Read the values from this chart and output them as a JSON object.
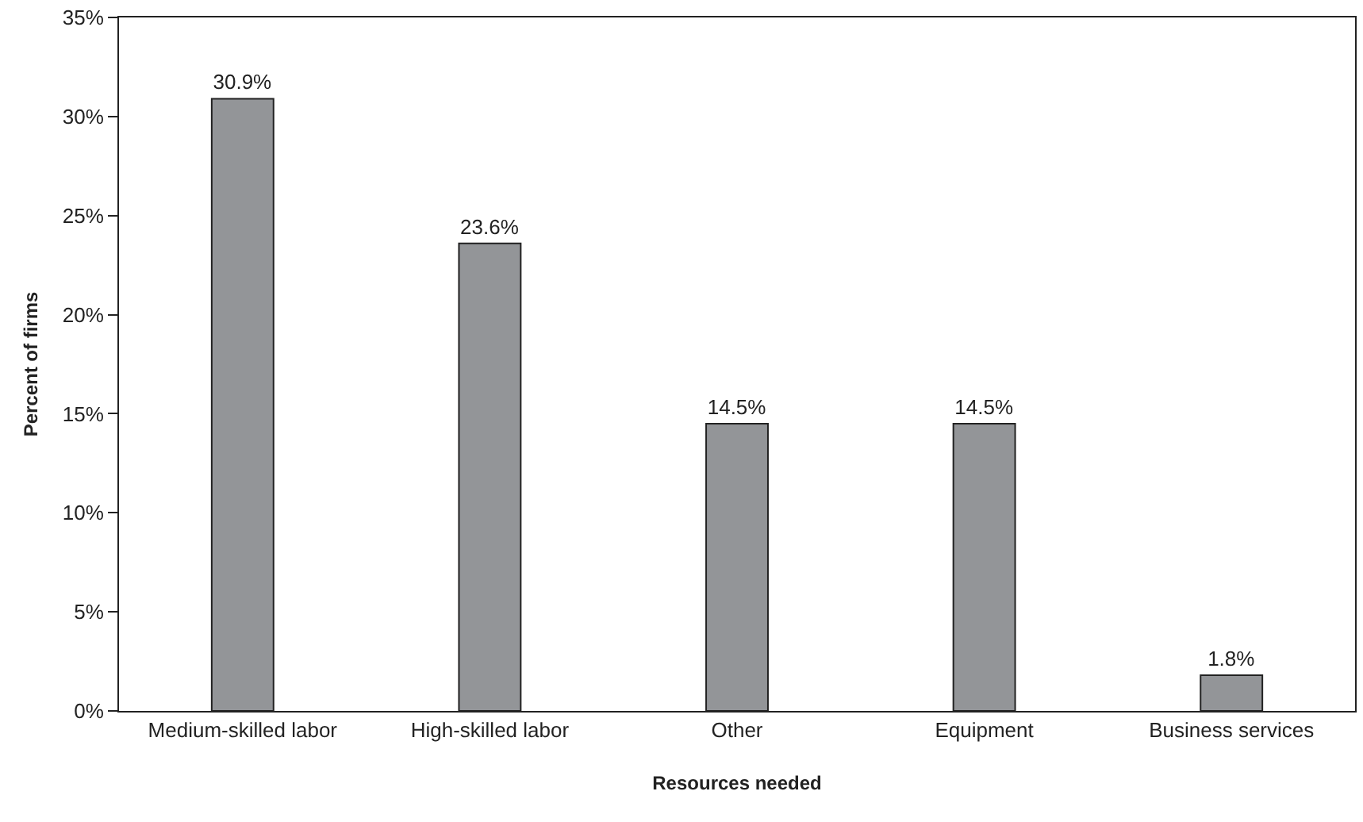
{
  "chart_data": {
    "type": "bar",
    "xlabel": "Resources needed",
    "ylabel": "Percent of firms",
    "categories": [
      "Medium-skilled labor",
      "High-skilled labor",
      "Other",
      "Equipment",
      "Business services"
    ],
    "values": [
      30.9,
      23.6,
      14.5,
      14.5,
      1.8
    ],
    "value_labels": [
      "30.9%",
      "23.6%",
      "14.5%",
      "14.5%",
      "1.8%"
    ],
    "color": "#939598",
    "ylim": [
      0,
      35
    ],
    "yticks": [
      {
        "value": 0,
        "label": "0%"
      },
      {
        "value": 5,
        "label": "5%"
      },
      {
        "value": 10,
        "label": "10%"
      },
      {
        "value": 15,
        "label": "15%"
      },
      {
        "value": 20,
        "label": "20%"
      },
      {
        "value": 25,
        "label": "25%"
      },
      {
        "value": 30,
        "label": "30%"
      },
      {
        "value": 35,
        "label": "35%"
      }
    ],
    "data_labels": false
  }
}
